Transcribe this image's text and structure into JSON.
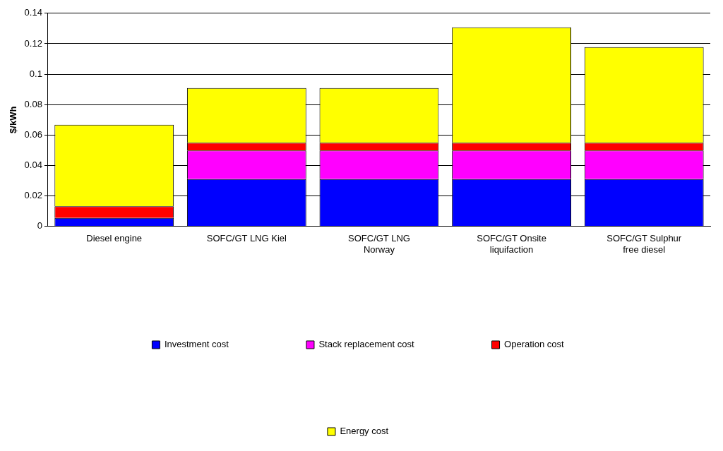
{
  "chart_data": {
    "type": "bar",
    "stacked": true,
    "ylabel": "$/kWh",
    "categories": [
      "Diesel engine",
      "SOFC/GT LNG Kiel",
      "SOFC/GT LNG Norway",
      "SOFC/GT Onsite liquifaction",
      "SOFC/GT Sulphur free diesel"
    ],
    "series": [
      {
        "name": "Investment cost",
        "color": "#0000ff",
        "values": [
          0.0056,
          0.0311,
          0.0311,
          0.0311,
          0.0311
        ]
      },
      {
        "name": "Stack replacement cost",
        "color": "#ff00ff",
        "values": [
          0,
          0.0188,
          0.0188,
          0.0188,
          0.0188
        ]
      },
      {
        "name": "Operation cost",
        "color": "#ff0000",
        "values": [
          0.0076,
          0.0051,
          0.0051,
          0.0051,
          0.0051
        ]
      },
      {
        "name": "Energy cost",
        "color": "#ffff00",
        "values": [
          0.0536,
          0.0359,
          0.0359,
          0.0757,
          0.0628
        ]
      }
    ],
    "ylim": [
      0,
      0.14
    ],
    "yticks": [
      0,
      0.02,
      0.04,
      0.06,
      0.08,
      0.1,
      0.12,
      0.14
    ],
    "grid": "y",
    "legend": "bottom"
  }
}
